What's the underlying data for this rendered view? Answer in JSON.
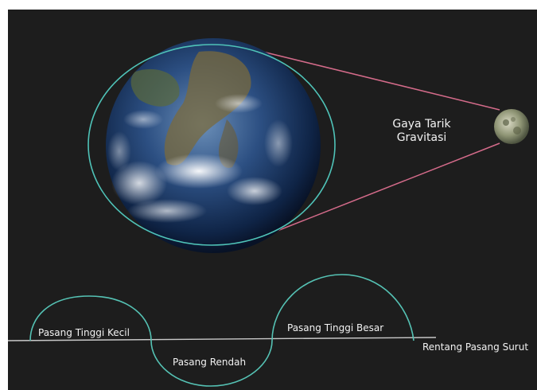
{
  "labels": {
    "gravity_line1": "Gaya Tarik",
    "gravity_line2": "Gravitasi",
    "small_high_tide": "Pasang Tinggi Kecil",
    "low_tide": "Pasang Rendah",
    "big_high_tide": "Pasang Tinggi Besar",
    "range": "Rentang Pasang Surut"
  },
  "colors": {
    "space_background": "#1d1d1d",
    "orbit_line": "#4fc3b8",
    "gravity_line": "#d46b8a",
    "wave_line": "#55c2b4",
    "text": "#f2f2f2"
  }
}
